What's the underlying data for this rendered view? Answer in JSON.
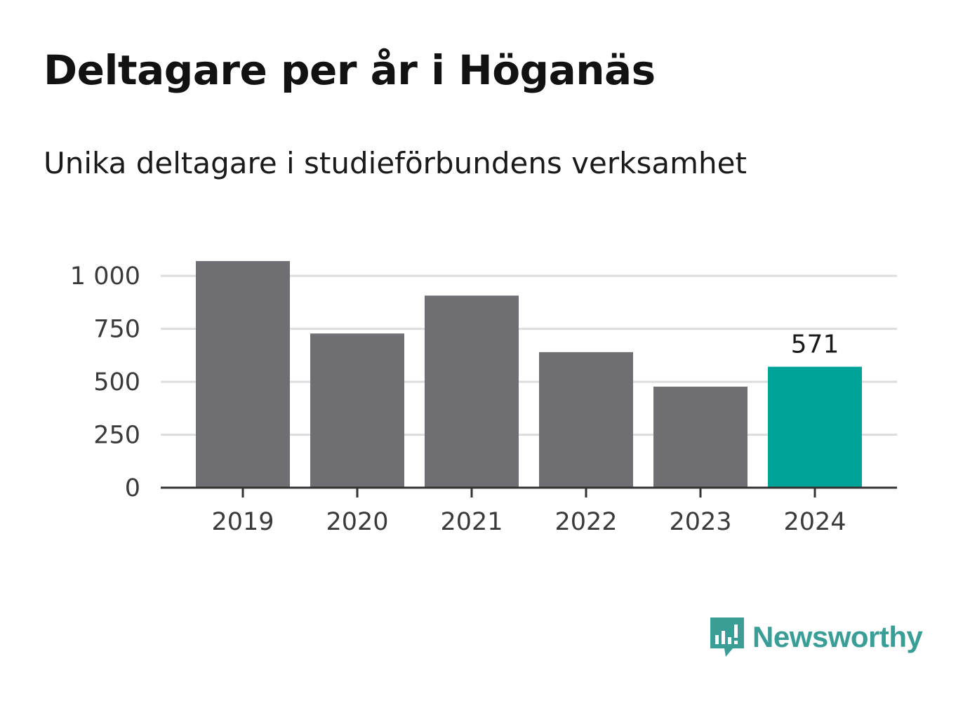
{
  "title": "Deltagare per år i Höganäs",
  "subtitle": "Unika deltagare i studieförbundens verksamhet",
  "brand": {
    "name": "Newsworthy",
    "icon": "newsworthy-logo-icon",
    "color": "#3a9e96"
  },
  "colors": {
    "bar": "#6f6e73",
    "highlight": "#00a398",
    "grid": "#dddddd",
    "axis": "#333333"
  },
  "chart_data": {
    "type": "bar",
    "categories": [
      "2019",
      "2020",
      "2021",
      "2022",
      "2023",
      "2024"
    ],
    "values": [
      1070,
      728,
      907,
      640,
      477,
      571
    ],
    "highlight_index": 5,
    "data_labels": [
      {
        "index": 5,
        "text": "571"
      }
    ],
    "yticks": [
      0,
      250,
      500,
      750,
      1000
    ],
    "ytick_labels": [
      "0",
      "250",
      "500",
      "750",
      "1 000"
    ],
    "ylim": [
      0,
      1100
    ],
    "grid": true,
    "xlabel": "",
    "ylabel": ""
  }
}
